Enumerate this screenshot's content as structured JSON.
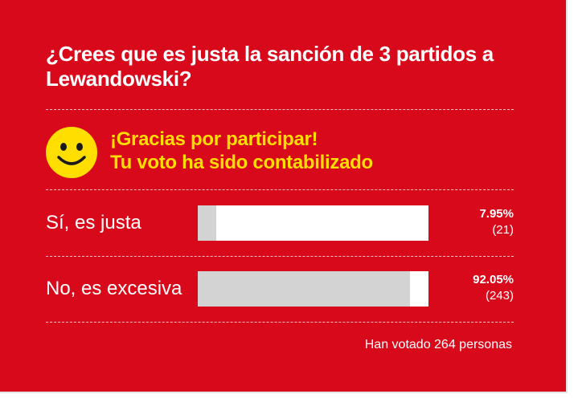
{
  "poll": {
    "question": "¿Crees que es justa la sanción de 3 partidos a Lewandowski?",
    "thanks_line1": "¡Gracias por participar!",
    "thanks_line2": "Tu voto ha sido contabilizado",
    "options": [
      {
        "label": "Sí, es justa",
        "percent": "7.95%",
        "count": "(21)",
        "fill": 0.0795
      },
      {
        "label": "No, es excesiva",
        "percent": "92.05%",
        "count": "(243)",
        "fill": 0.9205
      }
    ],
    "total_text": "Han votado 264 personas"
  },
  "colors": {
    "background": "#d8091a",
    "accent_yellow": "#ffde00",
    "bar_track": "#ffffff",
    "bar_fill": "#d3d3d3"
  },
  "icons": {
    "thanks": "smiley-icon"
  }
}
